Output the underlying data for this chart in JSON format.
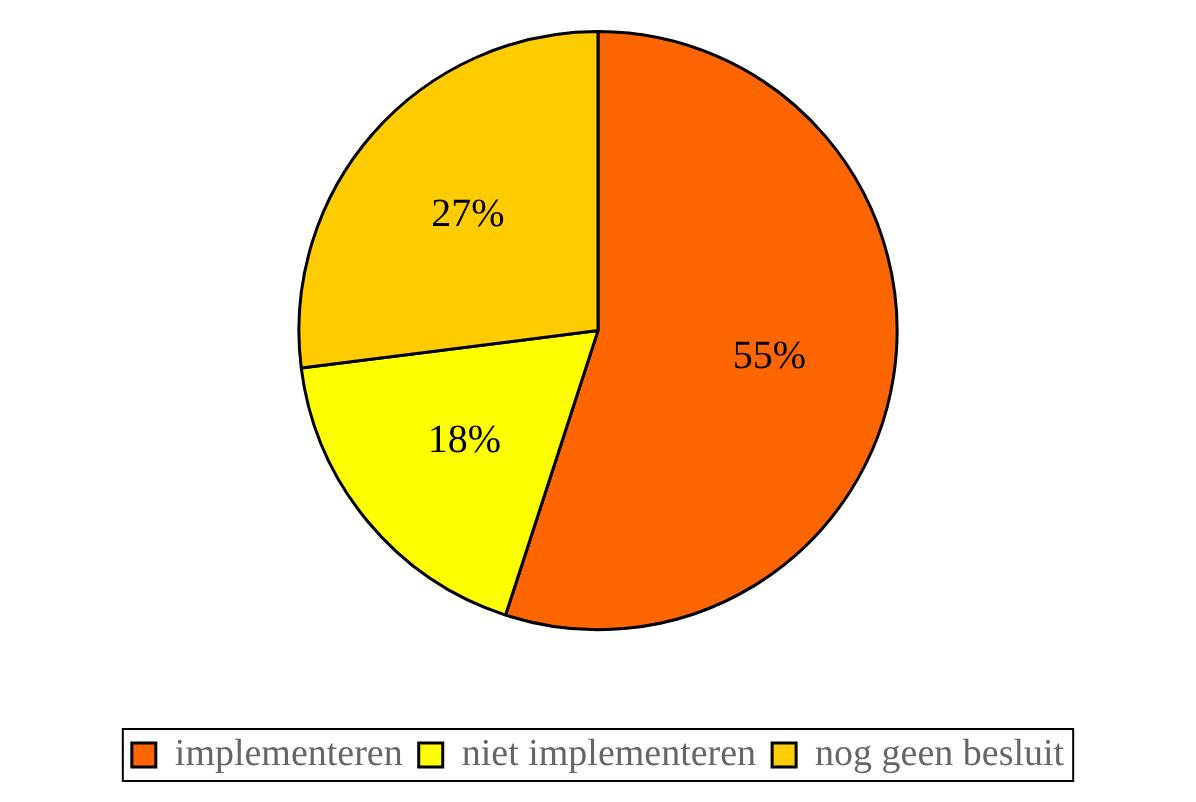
{
  "chart_data": {
    "type": "pie",
    "categories": [
      "implementeren",
      "niet implementeren",
      "nog geen besluit"
    ],
    "values": [
      55,
      18,
      27
    ],
    "colors": [
      "#ff6600",
      "#ffff00",
      "#ffcc00"
    ],
    "value_labels": [
      "55%",
      "18%",
      "27%"
    ],
    "legend": "bottom"
  }
}
